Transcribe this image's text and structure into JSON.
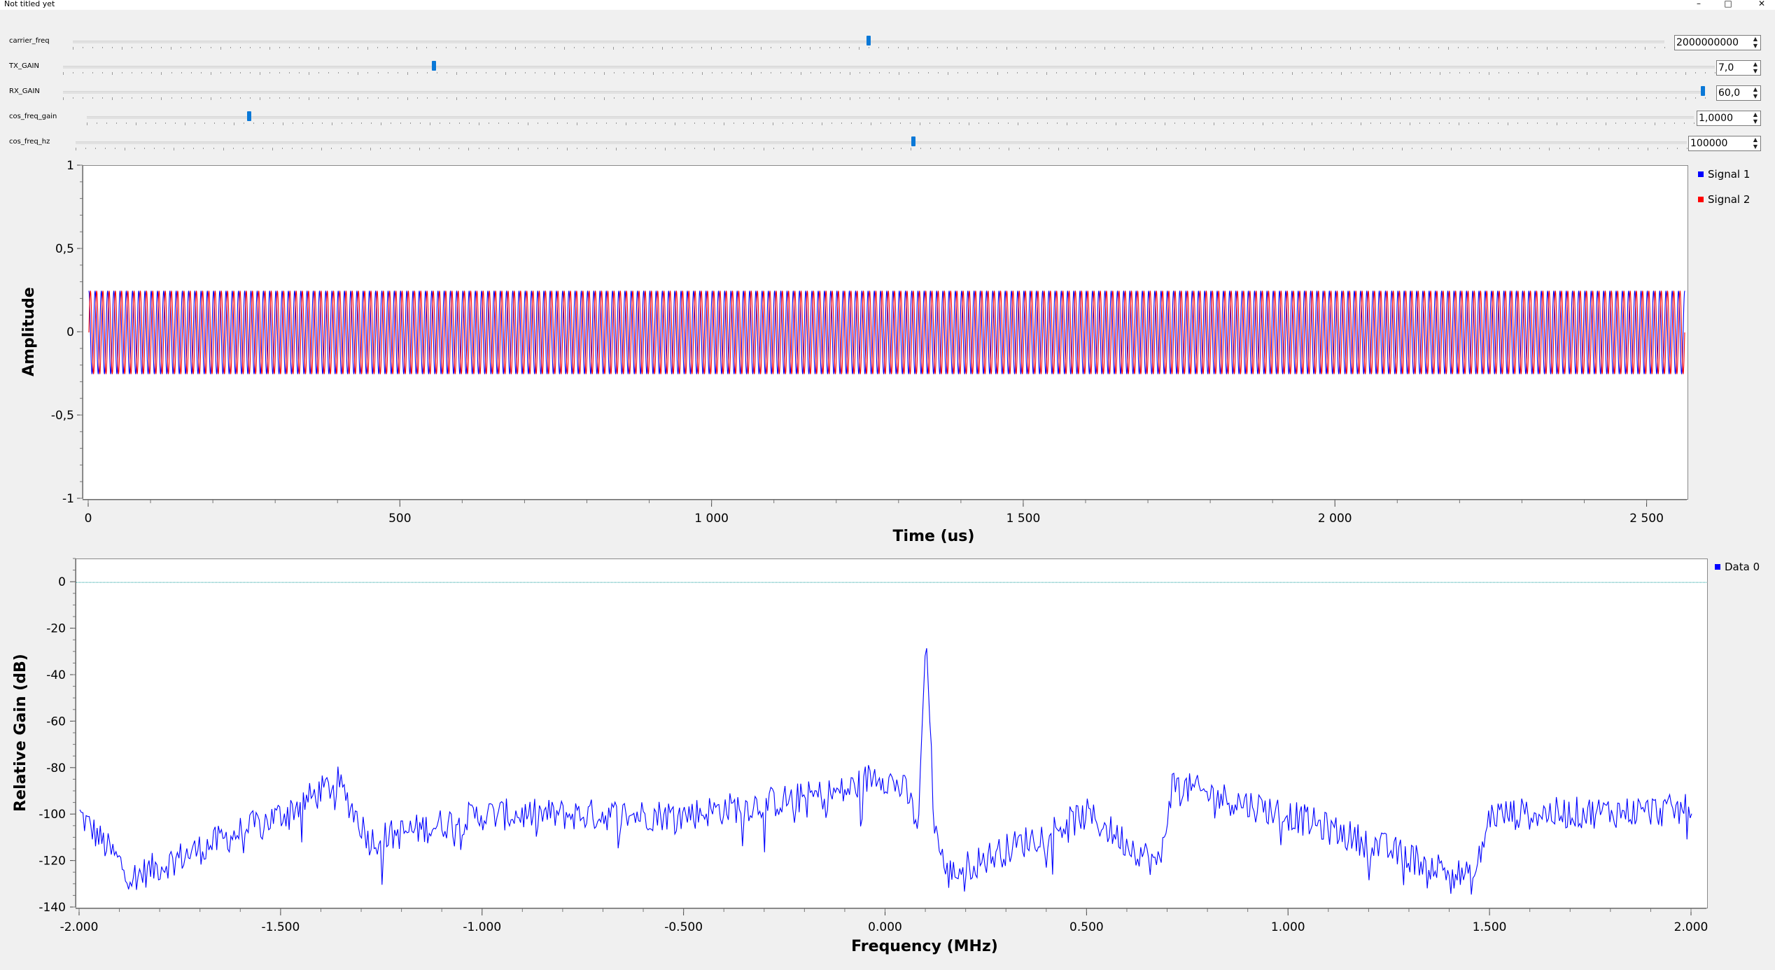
{
  "window": {
    "title": "Not titled yet",
    "min_glyph": "–",
    "max_glyph": "□",
    "close_glyph": "✕"
  },
  "controls": {
    "carrier_freq": {
      "label": "carrier_freq",
      "value": "2000000000",
      "position": 0.5
    },
    "tx_gain": {
      "label": "TX_GAIN",
      "value": "7,0",
      "position": 0.224
    },
    "rx_gain": {
      "label": "RX_GAIN",
      "value": "60,0",
      "position": 1.0
    },
    "cos_freq_gain": {
      "label": "cos_freq_gain",
      "value": "1,0000",
      "position": 0.1
    },
    "cos_freq_hz": {
      "label": "cos_freq_hz",
      "value": "100000",
      "position": 0.52
    }
  },
  "time_plot": {
    "chart_data": {
      "type": "line",
      "xlabel": "Time (us)",
      "ylabel": "Amplitude",
      "xlim": [
        0,
        2560
      ],
      "ylim": [
        -1,
        1
      ],
      "x_ticks": [
        "0",
        "500",
        "1 000",
        "1 500",
        "2 000",
        "2 500"
      ],
      "y_ticks": [
        "1",
        "0,5",
        "0",
        "-0,5",
        "-1"
      ],
      "series": [
        {
          "name": "Signal 1",
          "color": "#0000ff",
          "amplitude": 0.25,
          "frequency_mhz": 0.1,
          "phase": "cosine"
        },
        {
          "name": "Signal 2",
          "color": "#ff0000",
          "amplitude": 0.25,
          "frequency_mhz": 0.1,
          "phase": "sine"
        }
      ]
    },
    "legend": [
      "Signal 1",
      "Signal 2"
    ]
  },
  "freq_plot": {
    "chart_data": {
      "type": "line",
      "xlabel": "Frequency (MHz)",
      "ylabel": "Relative Gain (dB)",
      "xlim": [
        -2.0,
        2.0
      ],
      "ylim": [
        -140,
        10
      ],
      "x_ticks": [
        "-2.000",
        "-1.500",
        "-1.000",
        "-0.500",
        "0.000",
        "0.500",
        "1.000",
        "1.500",
        "2.000"
      ],
      "y_ticks": [
        "0",
        "-20",
        "-40",
        "-60",
        "-80",
        "-100",
        "-120",
        "-140"
      ],
      "series": [
        {
          "name": "Data 0",
          "color": "#0000ff",
          "noise_floor_db": -100,
          "points": [
            [
              -2.0,
              -100
            ],
            [
              -1.87,
              -127
            ],
            [
              -1.5,
              -100
            ],
            [
              -1.36,
              -86
            ],
            [
              -1.28,
              -111
            ],
            [
              -1.0,
              -100
            ],
            [
              -0.5,
              -100
            ],
            [
              -0.1,
              -90
            ],
            [
              -0.02,
              -82
            ],
            [
              0.05,
              -90
            ],
            [
              0.08,
              -104
            ],
            [
              0.1,
              -22
            ],
            [
              0.12,
              -103
            ],
            [
              0.15,
              -126
            ],
            [
              0.5,
              -100
            ],
            [
              0.68,
              -122
            ],
            [
              0.71,
              -87
            ],
            [
              1.0,
              -100
            ],
            [
              1.46,
              -128
            ],
            [
              1.5,
              -100
            ],
            [
              2.0,
              -98
            ]
          ]
        }
      ],
      "reference_line_db": 0,
      "reference_color": "#2aa6a6"
    },
    "legend": [
      "Data 0"
    ]
  }
}
